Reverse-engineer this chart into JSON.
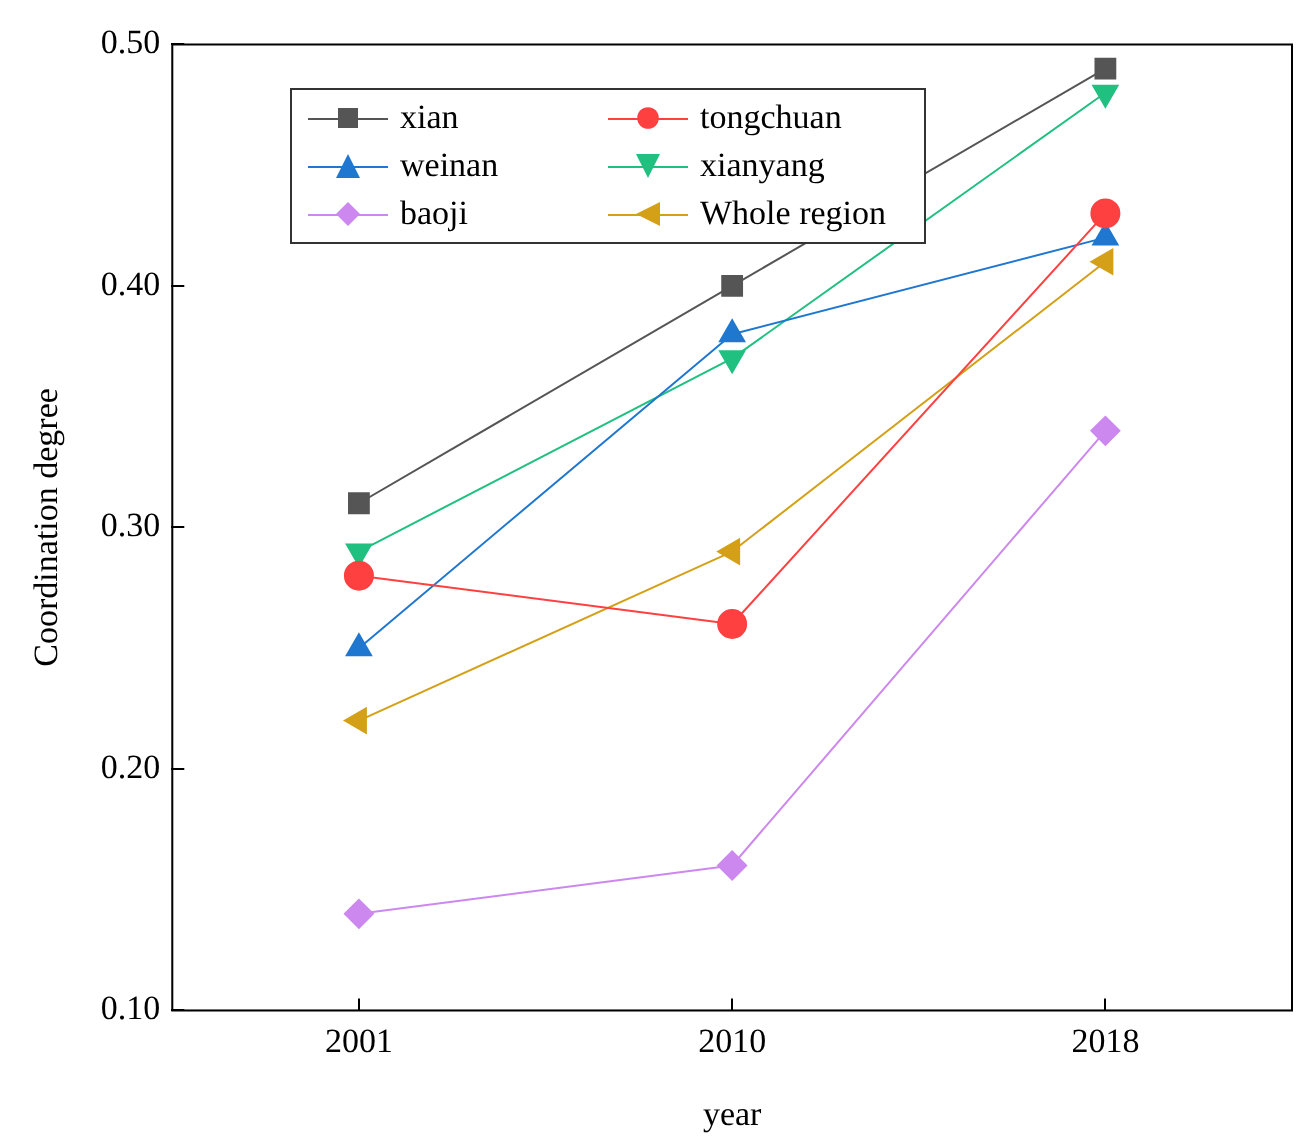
{
  "chart_data": {
    "type": "line",
    "xlabel": "year",
    "ylabel": "Coordination degree",
    "categories": [
      "2001",
      "2010",
      "2018"
    ],
    "ylim": [
      0.1,
      0.5
    ],
    "yticks": [
      {
        "value": 0.1,
        "label": "0.10"
      },
      {
        "value": 0.2,
        "label": "0.20"
      },
      {
        "value": 0.3,
        "label": "0.30"
      },
      {
        "value": 0.4,
        "label": "0.40"
      },
      {
        "value": 0.5,
        "label": "0.50"
      }
    ],
    "grid": false,
    "legend": "top left",
    "line_style": "solid",
    "series": [
      {
        "name": "xian",
        "color": "#555555",
        "marker": "square",
        "values": [
          0.31,
          0.4,
          0.49
        ]
      },
      {
        "name": "tongchuan",
        "color": "#ff4040",
        "marker": "circle",
        "values": [
          0.28,
          0.26,
          0.43
        ]
      },
      {
        "name": "weinan",
        "color": "#1f77d0",
        "marker": "triangle",
        "values": [
          0.25,
          0.38,
          0.42
        ]
      },
      {
        "name": "xianyang",
        "color": "#20c080",
        "marker": "triangle-down",
        "values": [
          0.29,
          0.37,
          0.48
        ]
      },
      {
        "name": "baoji",
        "color": "#cc88ee",
        "marker": "diamond",
        "values": [
          0.14,
          0.16,
          0.34
        ]
      },
      {
        "name": "Whole region",
        "color": "#d4a017",
        "marker": "triangle-left",
        "values": [
          0.22,
          0.29,
          0.41
        ]
      }
    ]
  }
}
